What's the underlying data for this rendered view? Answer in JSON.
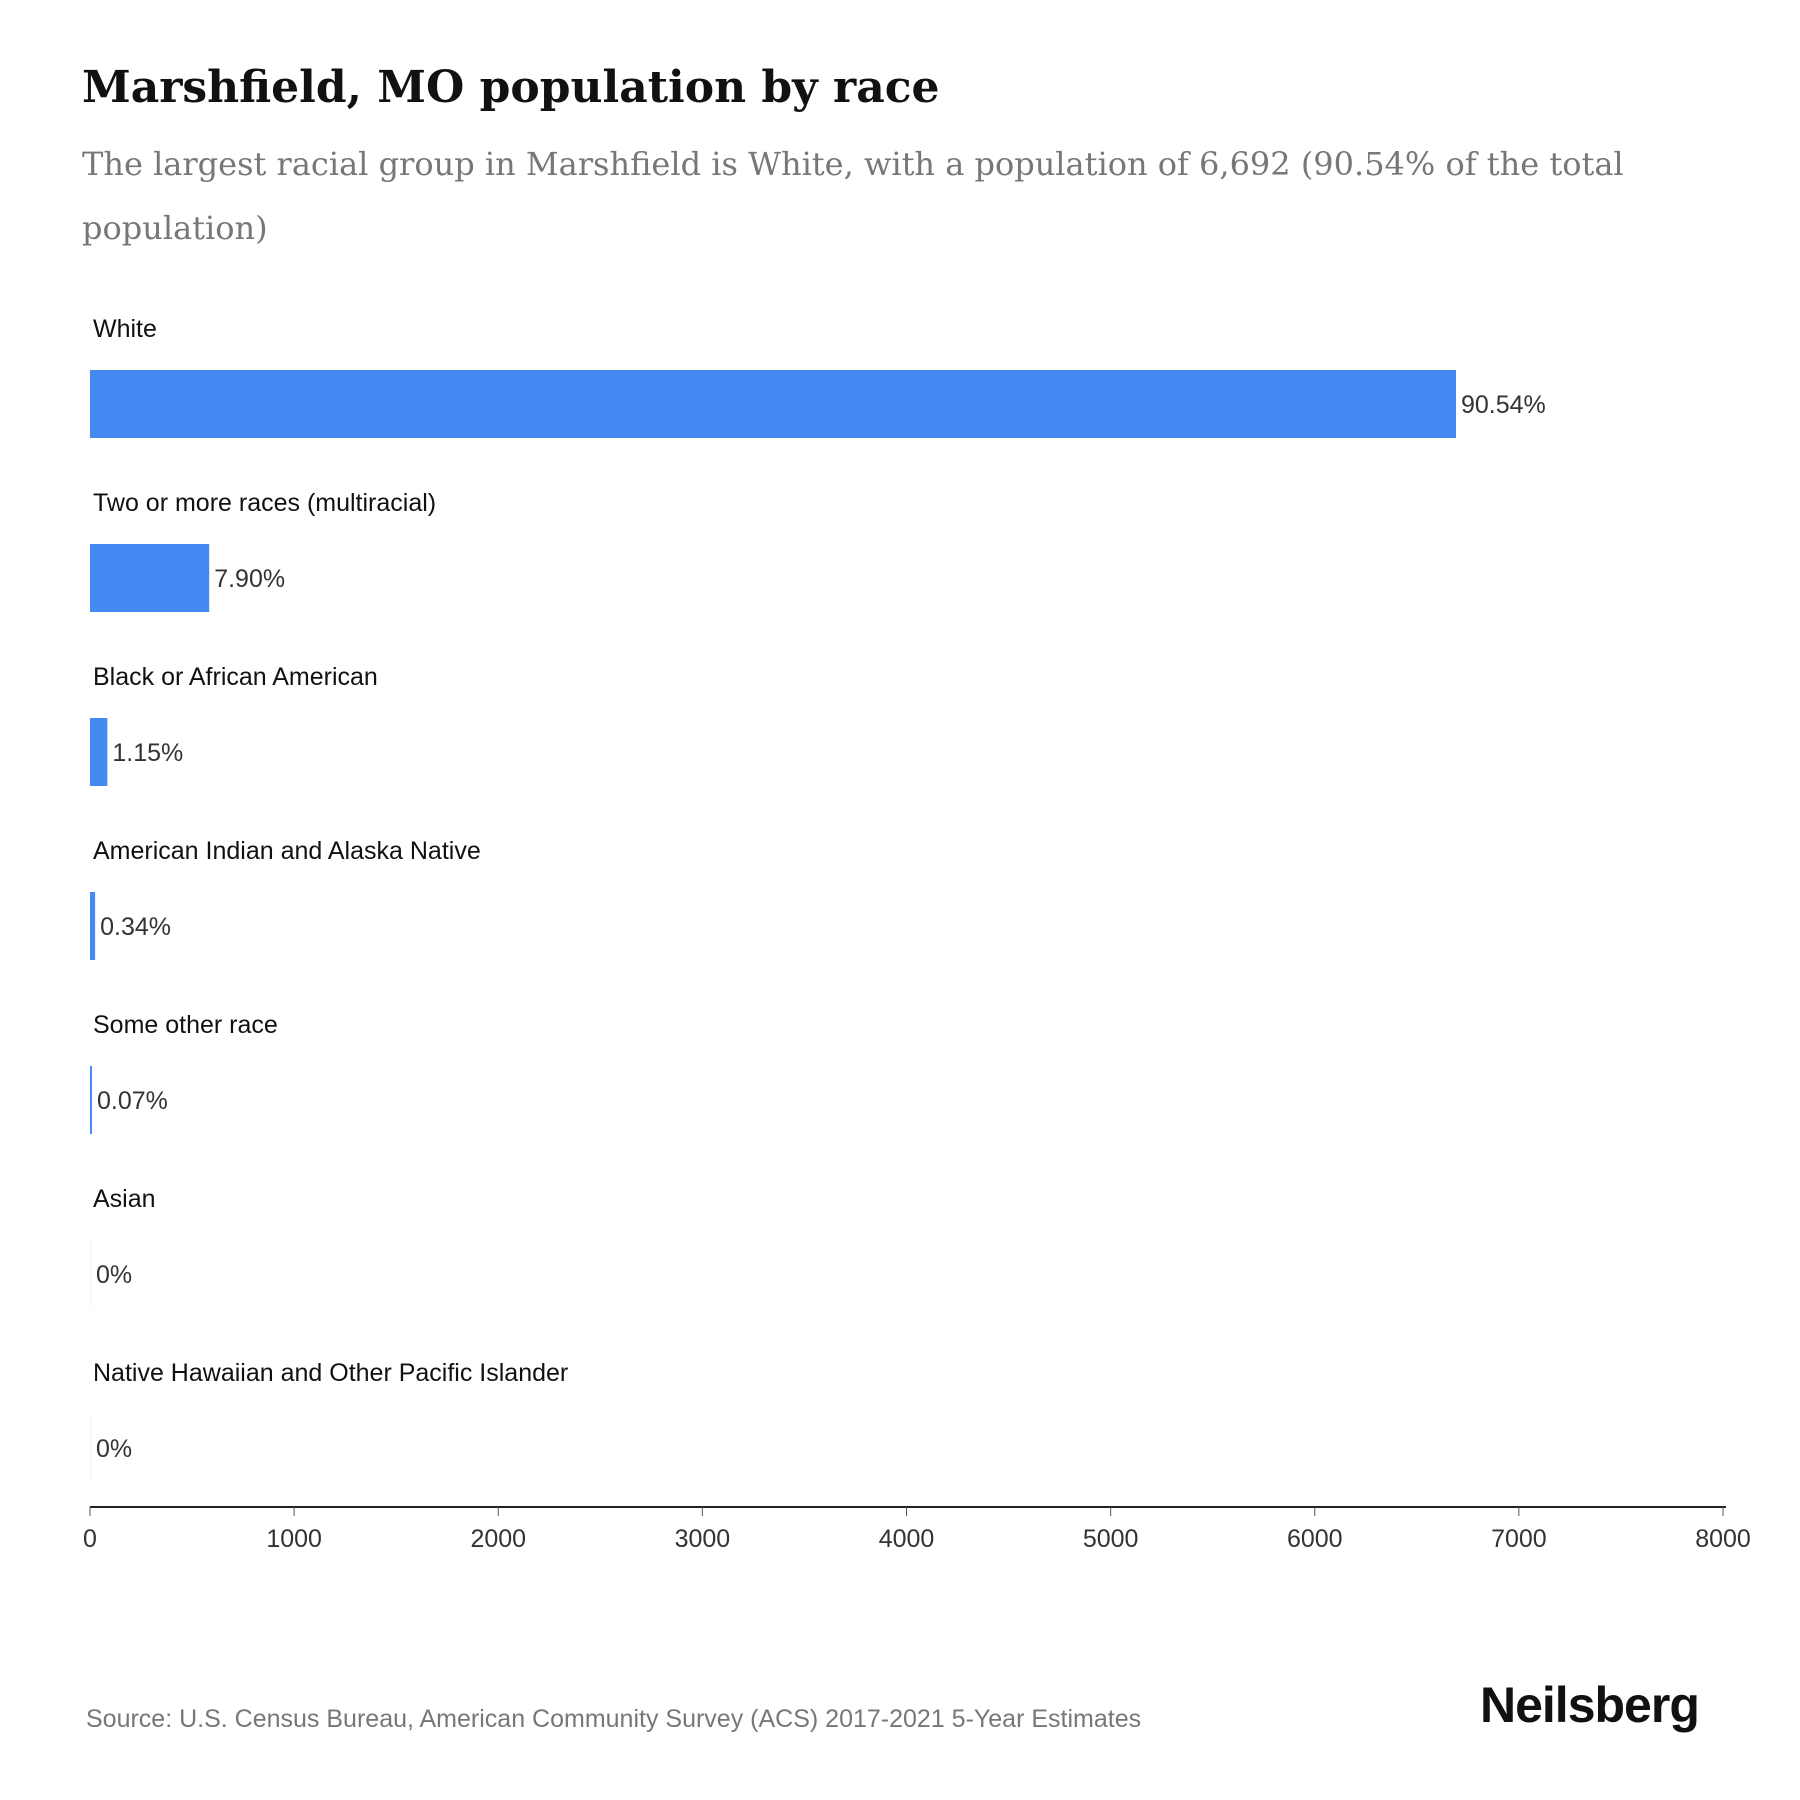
{
  "title": "Marshfield, MO population by race",
  "subtitle": "The largest racial group in Marshfield is White, with a population of 6,692 (90.54% of the total population)",
  "source": "Source: U.S. Census Bureau, American Community Survey (ACS) 2017-2021 5-Year Estimates",
  "logo": "Neilsberg",
  "colors": {
    "bar": "#4589f3",
    "axis": "#222222"
  },
  "chart_data": {
    "type": "bar",
    "orientation": "horizontal",
    "title": "Marshfield, MO population by race",
    "categories": [
      "White",
      "Two or more races (multiracial)",
      "Black or African American",
      "American Indian and Alaska Native",
      "Some other race",
      "Asian",
      "Native Hawaiian and Other Pacific Islander"
    ],
    "values": [
      6692,
      584,
      85,
      25,
      5,
      0,
      0
    ],
    "labels": [
      "90.54%",
      "7.90%",
      "1.15%",
      "0.34%",
      "0.07%",
      "0%",
      "0%"
    ],
    "xlim": [
      0,
      8000
    ],
    "xticks": [
      0,
      1000,
      2000,
      3000,
      4000,
      5000,
      6000,
      7000,
      8000
    ],
    "grid": false
  }
}
